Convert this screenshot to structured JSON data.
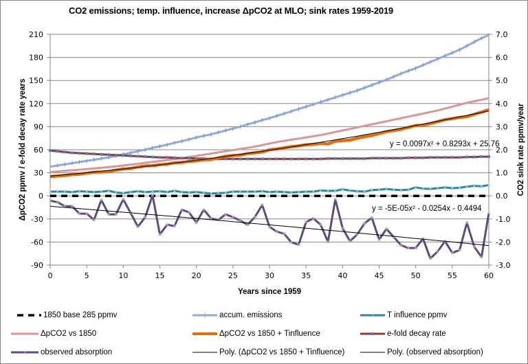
{
  "chart_data": {
    "type": "line",
    "title": "CO2 emissions; temp. influence, increase ΔpCO2 at MLO; sink rates 1959-2019",
    "xlabel": "Years since 1959",
    "ylabel_left": "ΔpCO2 ppmv / e-fold decay rate years",
    "ylabel_right": "CO2 sink rate ppmv/year",
    "xlim": [
      0,
      60
    ],
    "ylim_left": [
      -90,
      210
    ],
    "ylim_right": [
      -3.0,
      7.0
    ],
    "x_ticks": [
      "0",
      "5",
      "10",
      "15",
      "20",
      "25",
      "30",
      "35",
      "40",
      "45",
      "50",
      "55",
      "60"
    ],
    "y_ticks_left": [
      "210",
      "180",
      "150",
      "120",
      "90",
      "60",
      "30",
      "0",
      "-30",
      "-60",
      "-90"
    ],
    "y_ticks_right": [
      "7.0",
      "6.0",
      "5.0",
      "4.0",
      "3.0",
      "2.0",
      "1.0",
      "0.0",
      "-1.0",
      "-2.0",
      "-3.0"
    ],
    "grid": "horizontal",
    "legend_position": "bottom",
    "annotations": [
      {
        "text": "y = 0.0097x² + 0.8293x + 25.76",
        "series": "Poly. (ΔpCO2 vs 1850 + Tinfluence)"
      },
      {
        "text": "y = -5E-05x² - 0.0254x - 0.4494",
        "series": "Poly. (observed absorption)"
      }
    ],
    "series": [
      {
        "name": "1850 base 285 ppmv",
        "axis": "left",
        "color": "#000000",
        "style": "dash",
        "values": [
          0,
          0,
          0,
          0,
          0,
          0,
          0,
          0,
          0,
          0,
          0,
          0,
          0,
          0,
          0,
          0,
          0,
          0,
          0,
          0,
          0,
          0,
          0,
          0,
          0,
          0,
          0,
          0,
          0,
          0,
          0,
          0,
          0,
          0,
          0,
          0,
          0,
          0,
          0,
          0,
          0,
          0,
          0,
          0,
          0,
          0,
          0,
          0,
          0,
          0,
          0,
          0,
          0,
          0,
          0,
          0,
          0,
          0,
          0,
          0,
          0
        ]
      },
      {
        "name": "accum. emissions",
        "axis": "left",
        "color": "#8EA9DB",
        "style": "line-plus",
        "values": [
          38,
          39.5,
          41,
          42.5,
          44,
          45.5,
          47,
          48.5,
          50,
          52,
          54,
          56,
          58,
          60,
          62.5,
          64.5,
          66.5,
          69,
          71,
          73.5,
          76,
          78,
          80,
          82.5,
          85,
          87.5,
          90,
          93,
          95.5,
          98.5,
          101,
          104,
          107,
          110,
          113,
          116,
          119,
          122,
          125,
          128,
          131,
          134,
          137,
          140.5,
          144,
          147.5,
          151,
          155,
          159,
          162.5,
          166,
          170,
          174,
          178,
          182,
          186,
          190,
          195,
          200,
          205,
          209
        ]
      },
      {
        "name": "T influence ppmv",
        "axis": "left",
        "color": "#31859C",
        "style": "line-star",
        "values": [
          5.5,
          5.5,
          5.5,
          5,
          6,
          5.5,
          5,
          5.5,
          6.5,
          4.5,
          3.5,
          5,
          6,
          5,
          5.5,
          6,
          5,
          6.5,
          5,
          4.5,
          5,
          4,
          3,
          3.5,
          4,
          5.5,
          5.5,
          5.5,
          5.5,
          6,
          5,
          5.5,
          5,
          4.5,
          5,
          5.5,
          5.5,
          7,
          6.5,
          6.5,
          8.5,
          7,
          6,
          5.5,
          7.5,
          8,
          9,
          8,
          7.5,
          8,
          11,
          9.5,
          9,
          10,
          11,
          10,
          10.5,
          12,
          13,
          12.5,
          14
        ]
      },
      {
        "name": "ΔpCO2 vs 1850",
        "axis": "left",
        "color": "#D99694",
        "style": "line",
        "values": [
          31,
          31.8,
          32.5,
          33.3,
          34,
          34.8,
          35.6,
          36.5,
          37.5,
          38.5,
          39.5,
          40.5,
          41.7,
          43,
          44.2,
          45.3,
          46.5,
          47.8,
          49,
          50.5,
          52,
          53.5,
          55,
          56.5,
          58,
          59.5,
          61,
          62.5,
          64,
          66,
          68,
          70,
          71.5,
          73,
          74.5,
          76,
          77.5,
          79,
          81,
          83,
          85,
          87,
          89,
          91,
          93,
          95,
          97,
          99,
          101,
          103,
          105,
          107,
          109,
          111,
          113.5,
          116,
          118.5,
          121,
          123,
          125,
          127
        ]
      },
      {
        "name": "ΔpCO2 vs 1850 + Tinfluence",
        "axis": "left",
        "color": "#E46C0A",
        "style": "line-thick",
        "values": [
          25,
          25.8,
          26.5,
          27.8,
          28.2,
          29.5,
          30.8,
          31,
          31.5,
          33.5,
          35,
          35.5,
          37.5,
          39,
          39.2,
          40.5,
          41.2,
          43,
          43.5,
          44.8,
          45.5,
          47,
          47.2,
          49.5,
          51.5,
          52.5,
          53,
          55,
          56,
          57,
          60,
          61,
          62.5,
          64,
          65,
          66.5,
          67,
          68,
          67.5,
          71,
          72,
          72.5,
          75,
          77,
          78.5,
          81,
          83.5,
          85,
          86.5,
          89,
          91.5,
          92,
          94,
          96.5,
          99,
          100.5,
          102,
          103,
          106,
          109,
          112
        ]
      },
      {
        "name": "e-fold decay rate",
        "axis": "left",
        "color": "#953735",
        "style": "line-square",
        "values": [
          59,
          58,
          57,
          56,
          55.5,
          55,
          54.5,
          54,
          53.5,
          53,
          52.5,
          52,
          51.5,
          51,
          50.5,
          50,
          50,
          49.5,
          49,
          49,
          48.5,
          48.5,
          48,
          48,
          48,
          48,
          48,
          48,
          48,
          48,
          48,
          48,
          48,
          48,
          48,
          48,
          48,
          48,
          48.5,
          48.5,
          48.5,
          48.5,
          48.5,
          48.5,
          49,
          49,
          49,
          49,
          49,
          49.5,
          49.5,
          49.5,
          50,
          50,
          50,
          50,
          50,
          50.5,
          50.5,
          51,
          51
        ]
      },
      {
        "name": "observed absorption",
        "axis": "right",
        "color": "#604A7B",
        "style": "line-x",
        "values": [
          -0.21,
          -0.27,
          -0.45,
          -0.45,
          -0.77,
          -0.77,
          -1.04,
          -0.18,
          -0.8,
          -0.8,
          -0.15,
          -0.74,
          -1.34,
          -0.92,
          0.03,
          -1.67,
          -1.25,
          -1.31,
          -0.6,
          -0.71,
          -1.16,
          -0.6,
          -0.98,
          -1.04,
          -0.8,
          -0.92,
          -1.07,
          -1.25,
          -0.92,
          -0.39,
          -1.34,
          -1.55,
          -1.64,
          -2.02,
          -2.11,
          -1.13,
          -0.98,
          -1.25,
          -1.99,
          -0.15,
          -1.4,
          -1.96,
          -1.67,
          -1.19,
          -0.95,
          -1.9,
          -1.43,
          -1.79,
          -2.14,
          -2.26,
          -2.26,
          -1.85,
          -2.71,
          -2.41,
          -1.96,
          -2.47,
          -2.35,
          -1.16,
          -2.2,
          -2.65,
          -0.74
        ]
      },
      {
        "name": "Poly. (ΔpCO2 vs 1850 + Tinfluence)",
        "axis": "left",
        "color": "#000000",
        "style": "thin",
        "fit": {
          "a": 0.0097,
          "b": 0.8293,
          "c": 25.76
        }
      },
      {
        "name": "Poly. (observed absorption)",
        "axis": "right",
        "color": "#000000",
        "style": "thin",
        "fit": {
          "a": -5e-05,
          "b": -0.0254,
          "c": -0.4494
        }
      }
    ]
  },
  "legend": [
    {
      "label": "1850 base 285 ppmv"
    },
    {
      "label": "accum. emissions"
    },
    {
      "label": "T influence ppmv"
    },
    {
      "label": "ΔpCO2 vs 1850"
    },
    {
      "label": "ΔpCO2 vs 1850 + Tinfluence"
    },
    {
      "label": "e-fold decay rate"
    },
    {
      "label": "observed absorption"
    },
    {
      "label": "Poly. (ΔpCO2 vs 1850 + Tinfluence)"
    },
    {
      "label": "Poly. (observed absorption)"
    }
  ]
}
